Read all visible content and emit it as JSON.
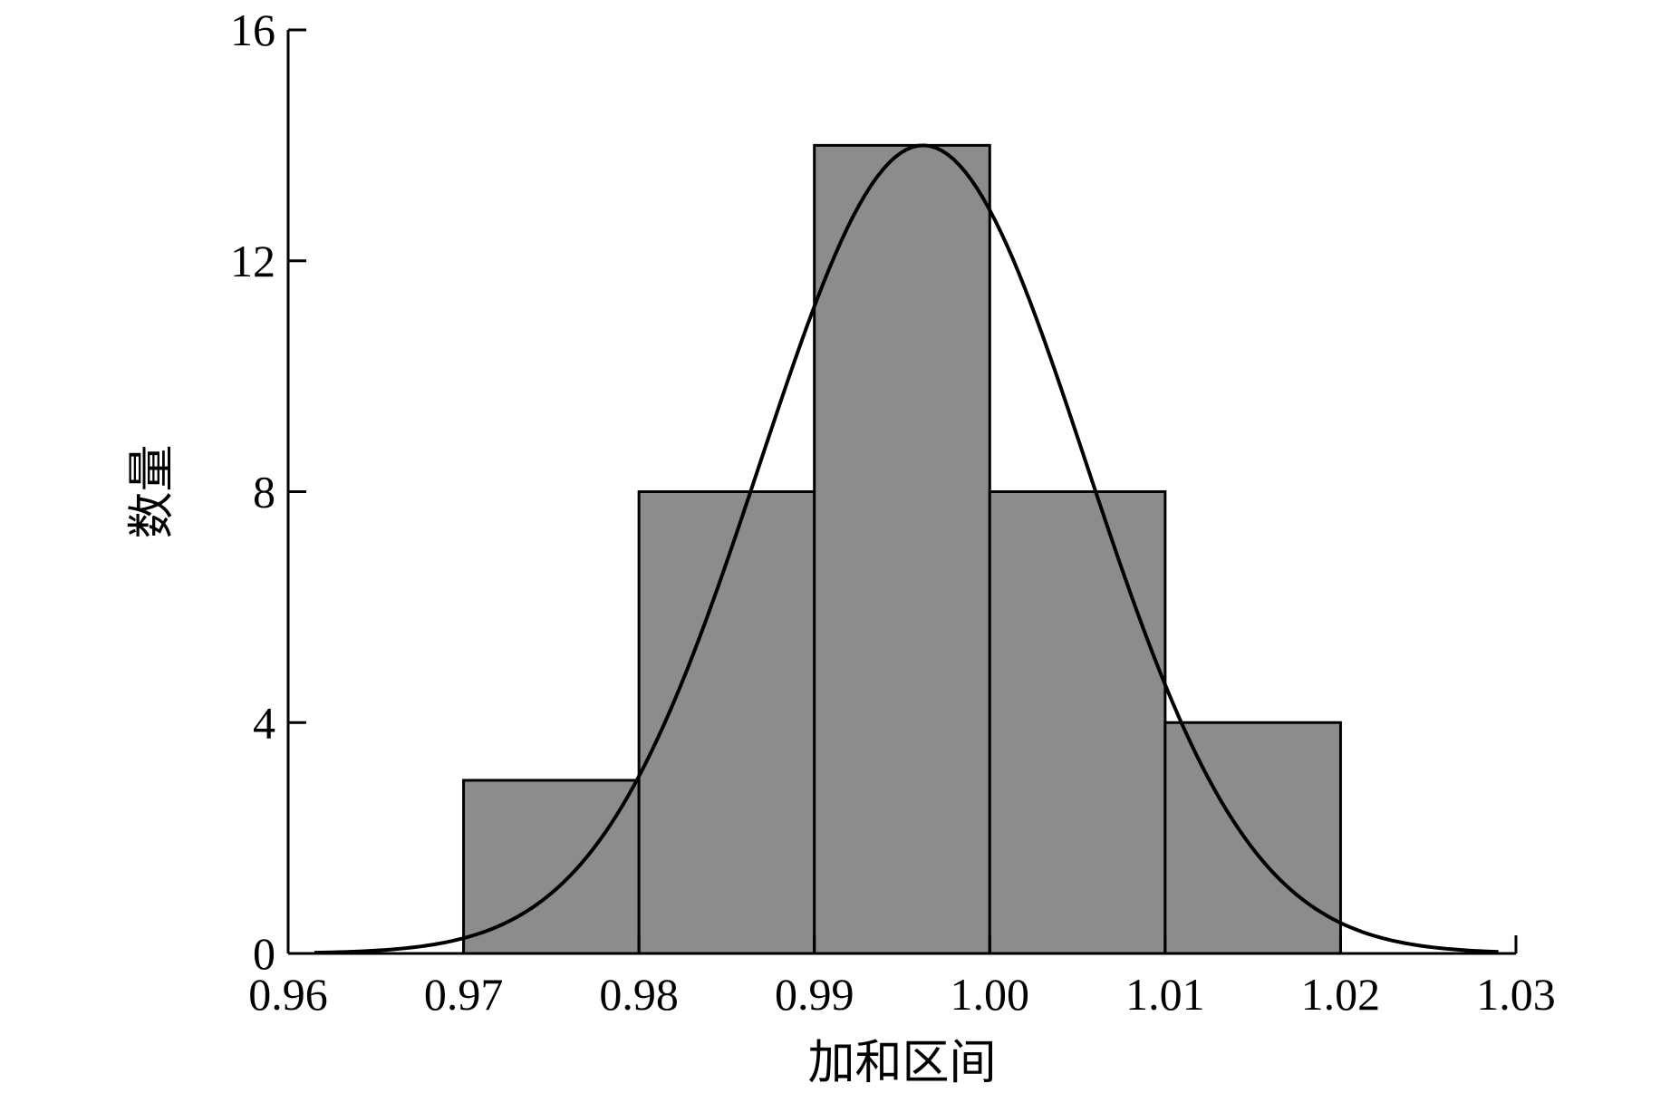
{
  "chart_data": {
    "type": "bar",
    "xlabel": "加和区间",
    "ylabel": "数量",
    "xlim": [
      0.96,
      1.03
    ],
    "ylim": [
      0,
      16
    ],
    "x_ticks": [
      0.96,
      0.97,
      0.98,
      0.99,
      1.0,
      1.01,
      1.02,
      1.03
    ],
    "x_tick_labels": [
      "0.96",
      "0.97",
      "0.98",
      "0.99",
      "1.00",
      "1.01",
      "1.02",
      "1.03"
    ],
    "y_ticks": [
      0,
      4,
      8,
      12,
      16
    ],
    "y_tick_labels": [
      "0",
      "4",
      "8",
      "12",
      "16"
    ],
    "bins": [
      {
        "start": 0.97,
        "end": 0.98,
        "count": 3
      },
      {
        "start": 0.98,
        "end": 0.99,
        "count": 8
      },
      {
        "start": 0.99,
        "end": 1.0,
        "count": 14
      },
      {
        "start": 1.0,
        "end": 1.01,
        "count": 8
      },
      {
        "start": 1.01,
        "end": 1.02,
        "count": 4
      }
    ],
    "fit_curve": {
      "type": "normal",
      "mean": 0.9962,
      "sd": 0.0093,
      "peak": 14,
      "x_range": [
        0.9615,
        1.029
      ]
    },
    "colors": {
      "bar": "#8c8c8c",
      "edge": "#000000"
    },
    "grid": false,
    "legend": "none"
  }
}
